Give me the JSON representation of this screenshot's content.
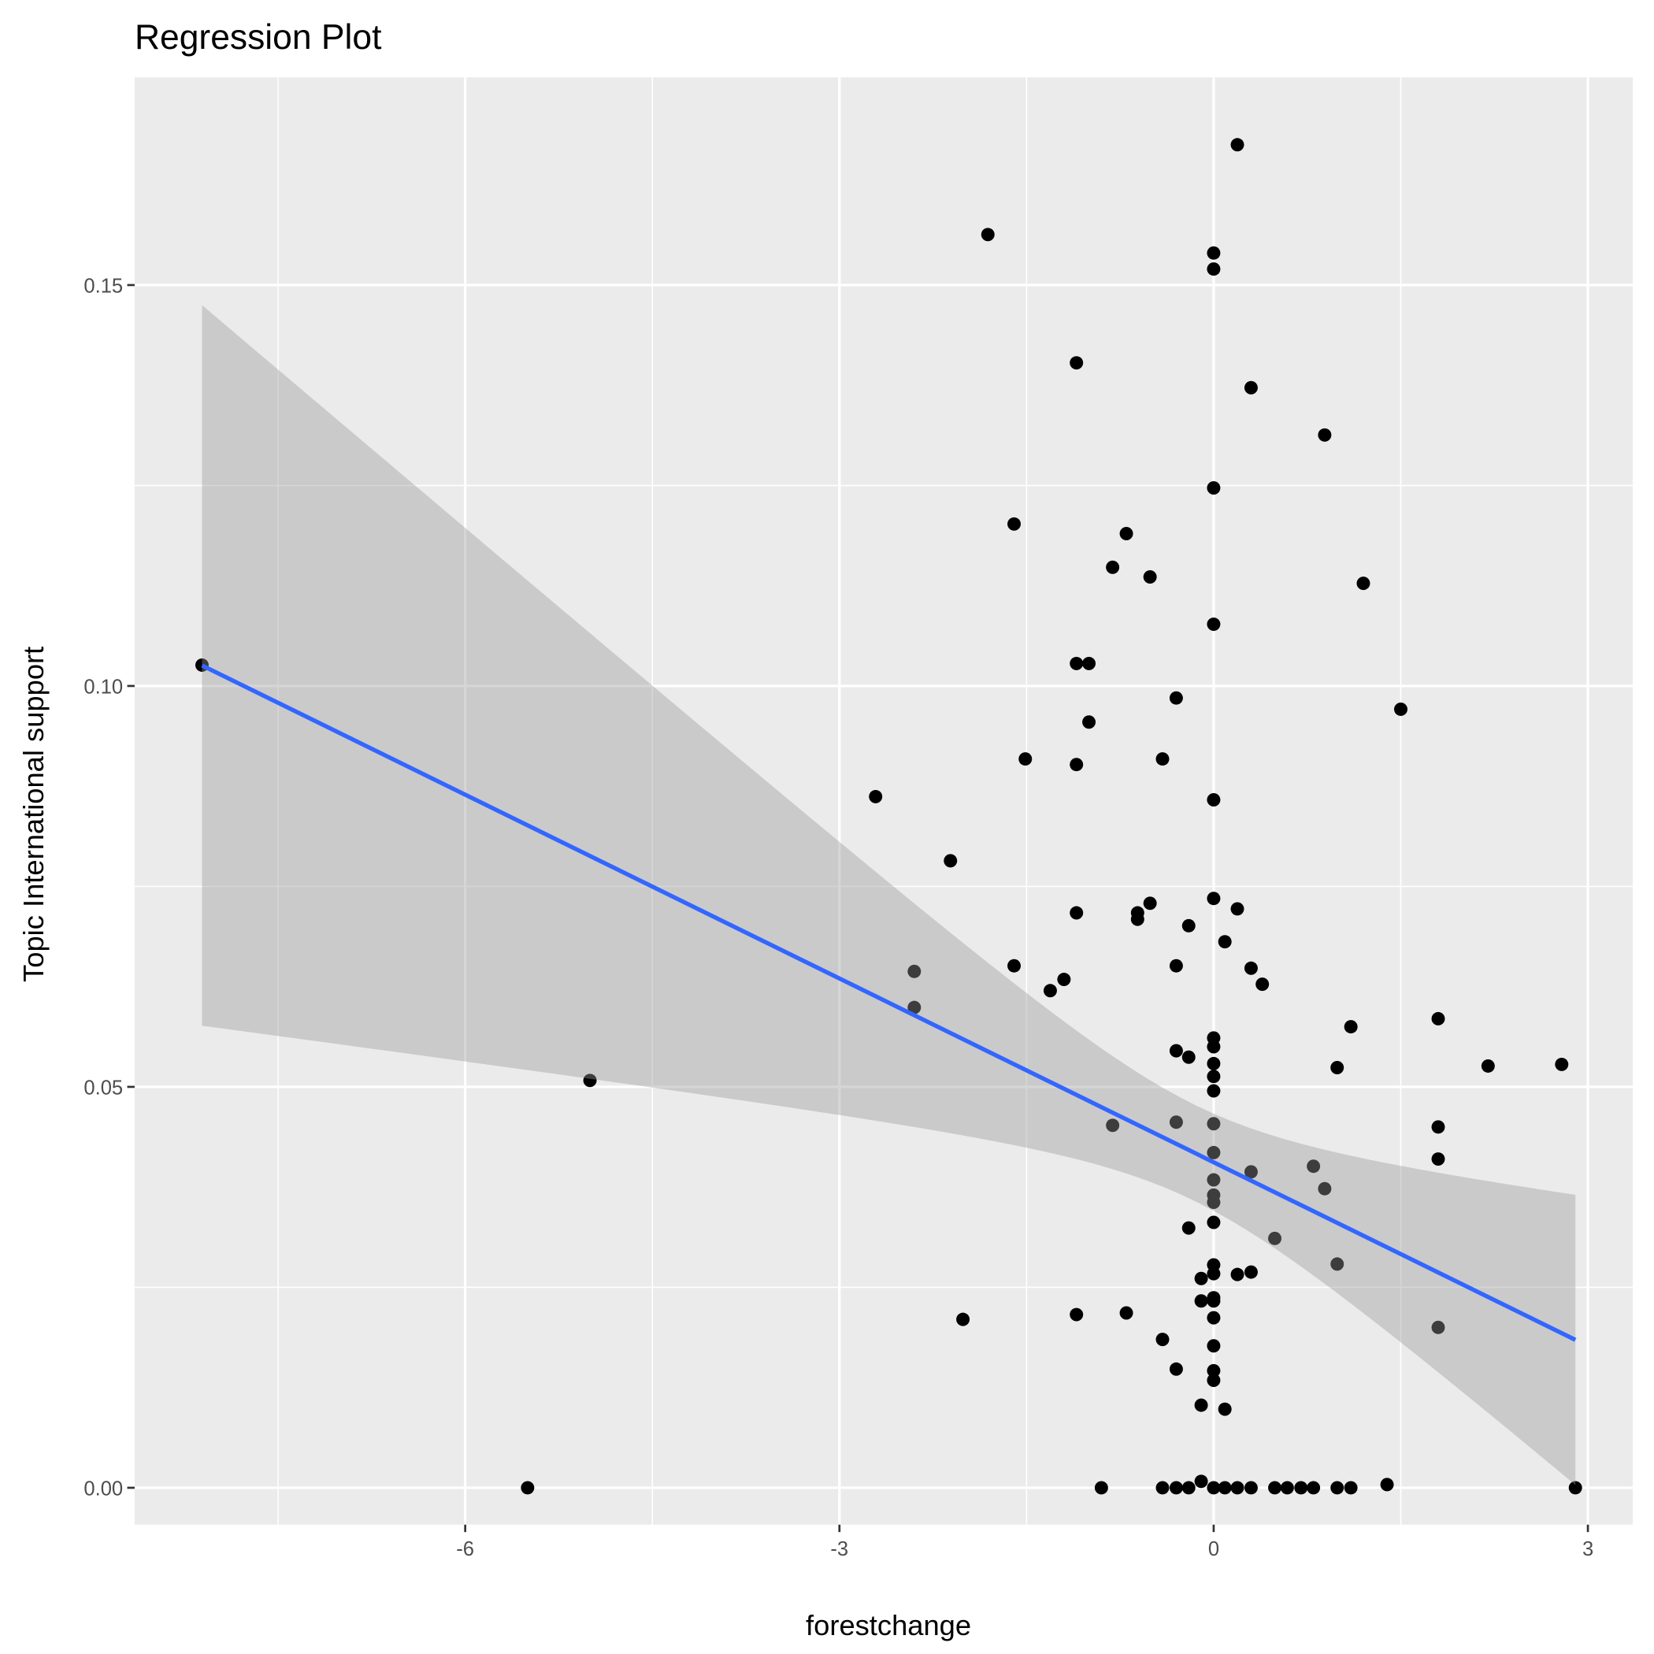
{
  "chart_data": {
    "type": "scatter",
    "title": "Regression Plot",
    "xlabel": "forestchange",
    "ylabel": "Topic International support",
    "xlim": [
      -8.65,
      3.36
    ],
    "ylim": [
      -0.0046,
      0.1759
    ],
    "xticks": [
      -6,
      -3,
      0,
      3
    ],
    "xtick_labels": [
      "-6",
      "-3",
      "0",
      "3"
    ],
    "xminor": [
      -7.5,
      -4.5,
      -1.5,
      1.5
    ],
    "yticks": [
      0,
      0.05,
      0.1,
      0.15
    ],
    "ytick_labels": [
      "0.00",
      "0.05",
      "0.10",
      "0.15"
    ],
    "yminor": [
      0.025,
      0.075,
      0.125
    ],
    "grid": true,
    "colors": {
      "panel": "#EBEBEB",
      "grid": "#FFFFFF",
      "points": "#000000",
      "line": "#3366FF",
      "ribbon": "#999999"
    },
    "regression": {
      "intercept": 0.0406,
      "slope": -0.00764,
      "x_range": [
        -8.11,
        2.9
      ],
      "ci_center": -0.15,
      "ci_base_var": 3.6e-05,
      "ci_slope_var": 3.13e-05
    },
    "points": [
      [
        0.19,
        0.1675
      ],
      [
        -1.81,
        0.1563
      ],
      [
        0,
        0.154
      ],
      [
        0,
        0.152
      ],
      [
        -1.1,
        0.1403
      ],
      [
        0.3,
        0.1372
      ],
      [
        0.89,
        0.1313
      ],
      [
        0,
        0.1247
      ],
      [
        -1.6,
        0.1202
      ],
      [
        -0.7,
        0.119
      ],
      [
        -0.81,
        0.1148
      ],
      [
        -0.51,
        0.1136
      ],
      [
        1.2,
        0.1128
      ],
      [
        0,
        0.1077
      ],
      [
        -8.11,
        0.1026
      ],
      [
        -1.1,
        0.1028
      ],
      [
        -1.0,
        0.1028
      ],
      [
        -0.3,
        0.0985
      ],
      [
        1.5,
        0.0971
      ],
      [
        -1.0,
        0.0955
      ],
      [
        -1.51,
        0.0909
      ],
      [
        -1.1,
        0.0902
      ],
      [
        -0.41,
        0.0909
      ],
      [
        -2.71,
        0.0862
      ],
      [
        0,
        0.0858
      ],
      [
        -2.11,
        0.0782
      ],
      [
        0,
        0.0735
      ],
      [
        -0.51,
        0.0729
      ],
      [
        -1.1,
        0.0717
      ],
      [
        -0.61,
        0.0717
      ],
      [
        -0.61,
        0.0709
      ],
      [
        0.19,
        0.0722
      ],
      [
        -0.2,
        0.0701
      ],
      [
        0.09,
        0.0681
      ],
      [
        -2.4,
        0.0644
      ],
      [
        -1.6,
        0.0651
      ],
      [
        -0.3,
        0.0651
      ],
      [
        0.3,
        0.0648
      ],
      [
        -1.2,
        0.0634
      ],
      [
        -1.31,
        0.062
      ],
      [
        0.39,
        0.0628
      ],
      [
        -2.4,
        0.0599
      ],
      [
        1.8,
        0.0585
      ],
      [
        1.1,
        0.0575
      ],
      [
        0,
        0.0561
      ],
      [
        0,
        0.055
      ],
      [
        -0.3,
        0.0545
      ],
      [
        -0.2,
        0.0537
      ],
      [
        0,
        0.0529
      ],
      [
        2.2,
        0.0526
      ],
      [
        2.79,
        0.0528
      ],
      [
        0.99,
        0.0524
      ],
      [
        0,
        0.0513
      ],
      [
        -5.0,
        0.0508
      ],
      [
        0,
        0.0495
      ],
      [
        -0.81,
        0.0452
      ],
      [
        -0.3,
        0.0456
      ],
      [
        0,
        0.0454
      ],
      [
        1.8,
        0.045
      ],
      [
        0,
        0.0418
      ],
      [
        1.8,
        0.041
      ],
      [
        0.8,
        0.0401
      ],
      [
        0.3,
        0.0394
      ],
      [
        0,
        0.0384
      ],
      [
        0.89,
        0.0373
      ],
      [
        0,
        0.0365
      ],
      [
        0,
        0.0356
      ],
      [
        0,
        0.0331
      ],
      [
        -0.2,
        0.0324
      ],
      [
        0.49,
        0.0311
      ],
      [
        0,
        0.0278
      ],
      [
        0.99,
        0.0279
      ],
      [
        0,
        0.0267
      ],
      [
        0.19,
        0.0266
      ],
      [
        0.3,
        0.0269
      ],
      [
        -0.1,
        0.0261
      ],
      [
        0,
        0.0237
      ],
      [
        -0.1,
        0.0233
      ],
      [
        0,
        0.0233
      ],
      [
        -2.01,
        0.021
      ],
      [
        -1.1,
        0.0216
      ],
      [
        -0.7,
        0.0218
      ],
      [
        0,
        0.0212
      ],
      [
        1.8,
        0.02
      ],
      [
        -0.41,
        0.0185
      ],
      [
        0,
        0.0177
      ],
      [
        -0.3,
        0.0148
      ],
      [
        0,
        0.0146
      ],
      [
        0,
        0.0134
      ],
      [
        -0.1,
        0.0103
      ],
      [
        0.09,
        0.0098
      ],
      [
        -5.5,
        0
      ],
      [
        -0.9,
        0
      ],
      [
        -0.41,
        0
      ],
      [
        -0.3,
        0
      ],
      [
        -0.2,
        0
      ],
      [
        -0.1,
        0.0008
      ],
      [
        0,
        0
      ],
      [
        0.09,
        0
      ],
      [
        0.19,
        0
      ],
      [
        0.3,
        0
      ],
      [
        0.49,
        0
      ],
      [
        0.59,
        0
      ],
      [
        0.7,
        0
      ],
      [
        0.8,
        0
      ],
      [
        0.99,
        0
      ],
      [
        1.1,
        0
      ],
      [
        1.39,
        0.0004
      ],
      [
        2.9,
        0
      ]
    ]
  }
}
